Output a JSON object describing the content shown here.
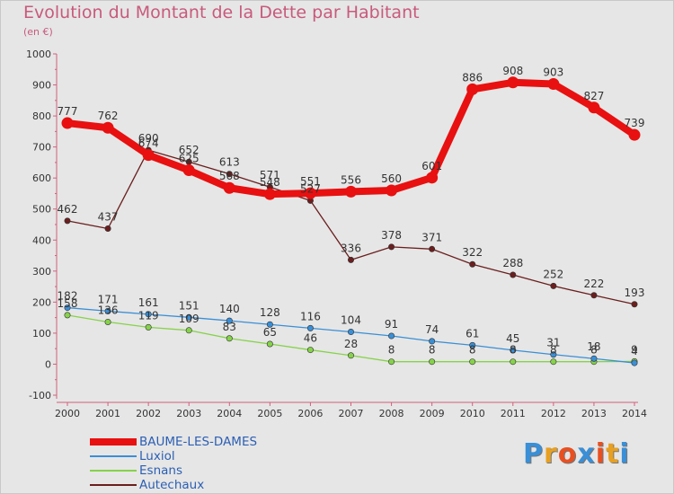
{
  "title": "Evolution du Montant de la Dette par Habitant",
  "subtitle": "(en €)",
  "logo": {
    "text": "Proxiti",
    "colors": [
      "#3a8fd6",
      "#e8a020",
      "#e85020",
      "#3a8fd6",
      "#e85020",
      "#e8a020",
      "#3a8fd6"
    ]
  },
  "chart_data": {
    "type": "line",
    "title": "Evolution du Montant de la Dette par Habitant",
    "ylabel": "(en €)",
    "xlabel": "",
    "x": [
      "2000",
      "2001",
      "2002",
      "2003",
      "2004",
      "2005",
      "2006",
      "2007",
      "2008",
      "2009",
      "2010",
      "2011",
      "2012",
      "2013",
      "2014"
    ],
    "ylim": [
      -100,
      1000
    ],
    "yticks": [
      -100,
      0,
      100,
      200,
      300,
      400,
      500,
      600,
      700,
      800,
      900,
      1000
    ],
    "grid": false,
    "legend": "bottom-left",
    "series": [
      {
        "name": "BAUME-LES-DAMES",
        "color": "#e81010",
        "values": [
          777,
          762,
          674,
          625,
          568,
          548,
          551,
          556,
          560,
          601,
          886,
          908,
          903,
          827,
          739
        ],
        "labels": [
          "777",
          "762",
          "674",
          "625",
          "568",
          "548",
          "551",
          "556",
          "560",
          "601",
          "886",
          "908",
          "903",
          "827",
          "739"
        ]
      },
      {
        "name": "Luxiol",
        "color": "#3a8fd6",
        "values": [
          182,
          171,
          161,
          151,
          140,
          128,
          116,
          104,
          91,
          74,
          61,
          45,
          31,
          18,
          4
        ],
        "labels": [
          "182",
          "171",
          "161",
          "151",
          "140",
          "128",
          "116",
          "104",
          "91",
          "74",
          "61",
          "45",
          "31",
          "18",
          "4"
        ]
      },
      {
        "name": "Esnans",
        "color": "#86d24a",
        "values": [
          158,
          136,
          119,
          109,
          83,
          65,
          46,
          28,
          8,
          8,
          8,
          8,
          8,
          8,
          9
        ],
        "labels": [
          "158",
          "136",
          "119",
          "109",
          "83",
          "65",
          "46",
          "28",
          "8",
          "8",
          "8",
          "8",
          "8",
          "8",
          "9"
        ]
      },
      {
        "name": "Autechaux",
        "color": "#6b1e1e",
        "values": [
          462,
          437,
          690,
          652,
          613,
          571,
          527,
          336,
          378,
          371,
          322,
          288,
          252,
          222,
          193
        ],
        "labels": [
          "462",
          "437",
          "690",
          "652",
          "613",
          "571",
          "527",
          "336",
          "378",
          "371",
          "322",
          "288",
          "252",
          "222",
          "193"
        ]
      }
    ]
  }
}
